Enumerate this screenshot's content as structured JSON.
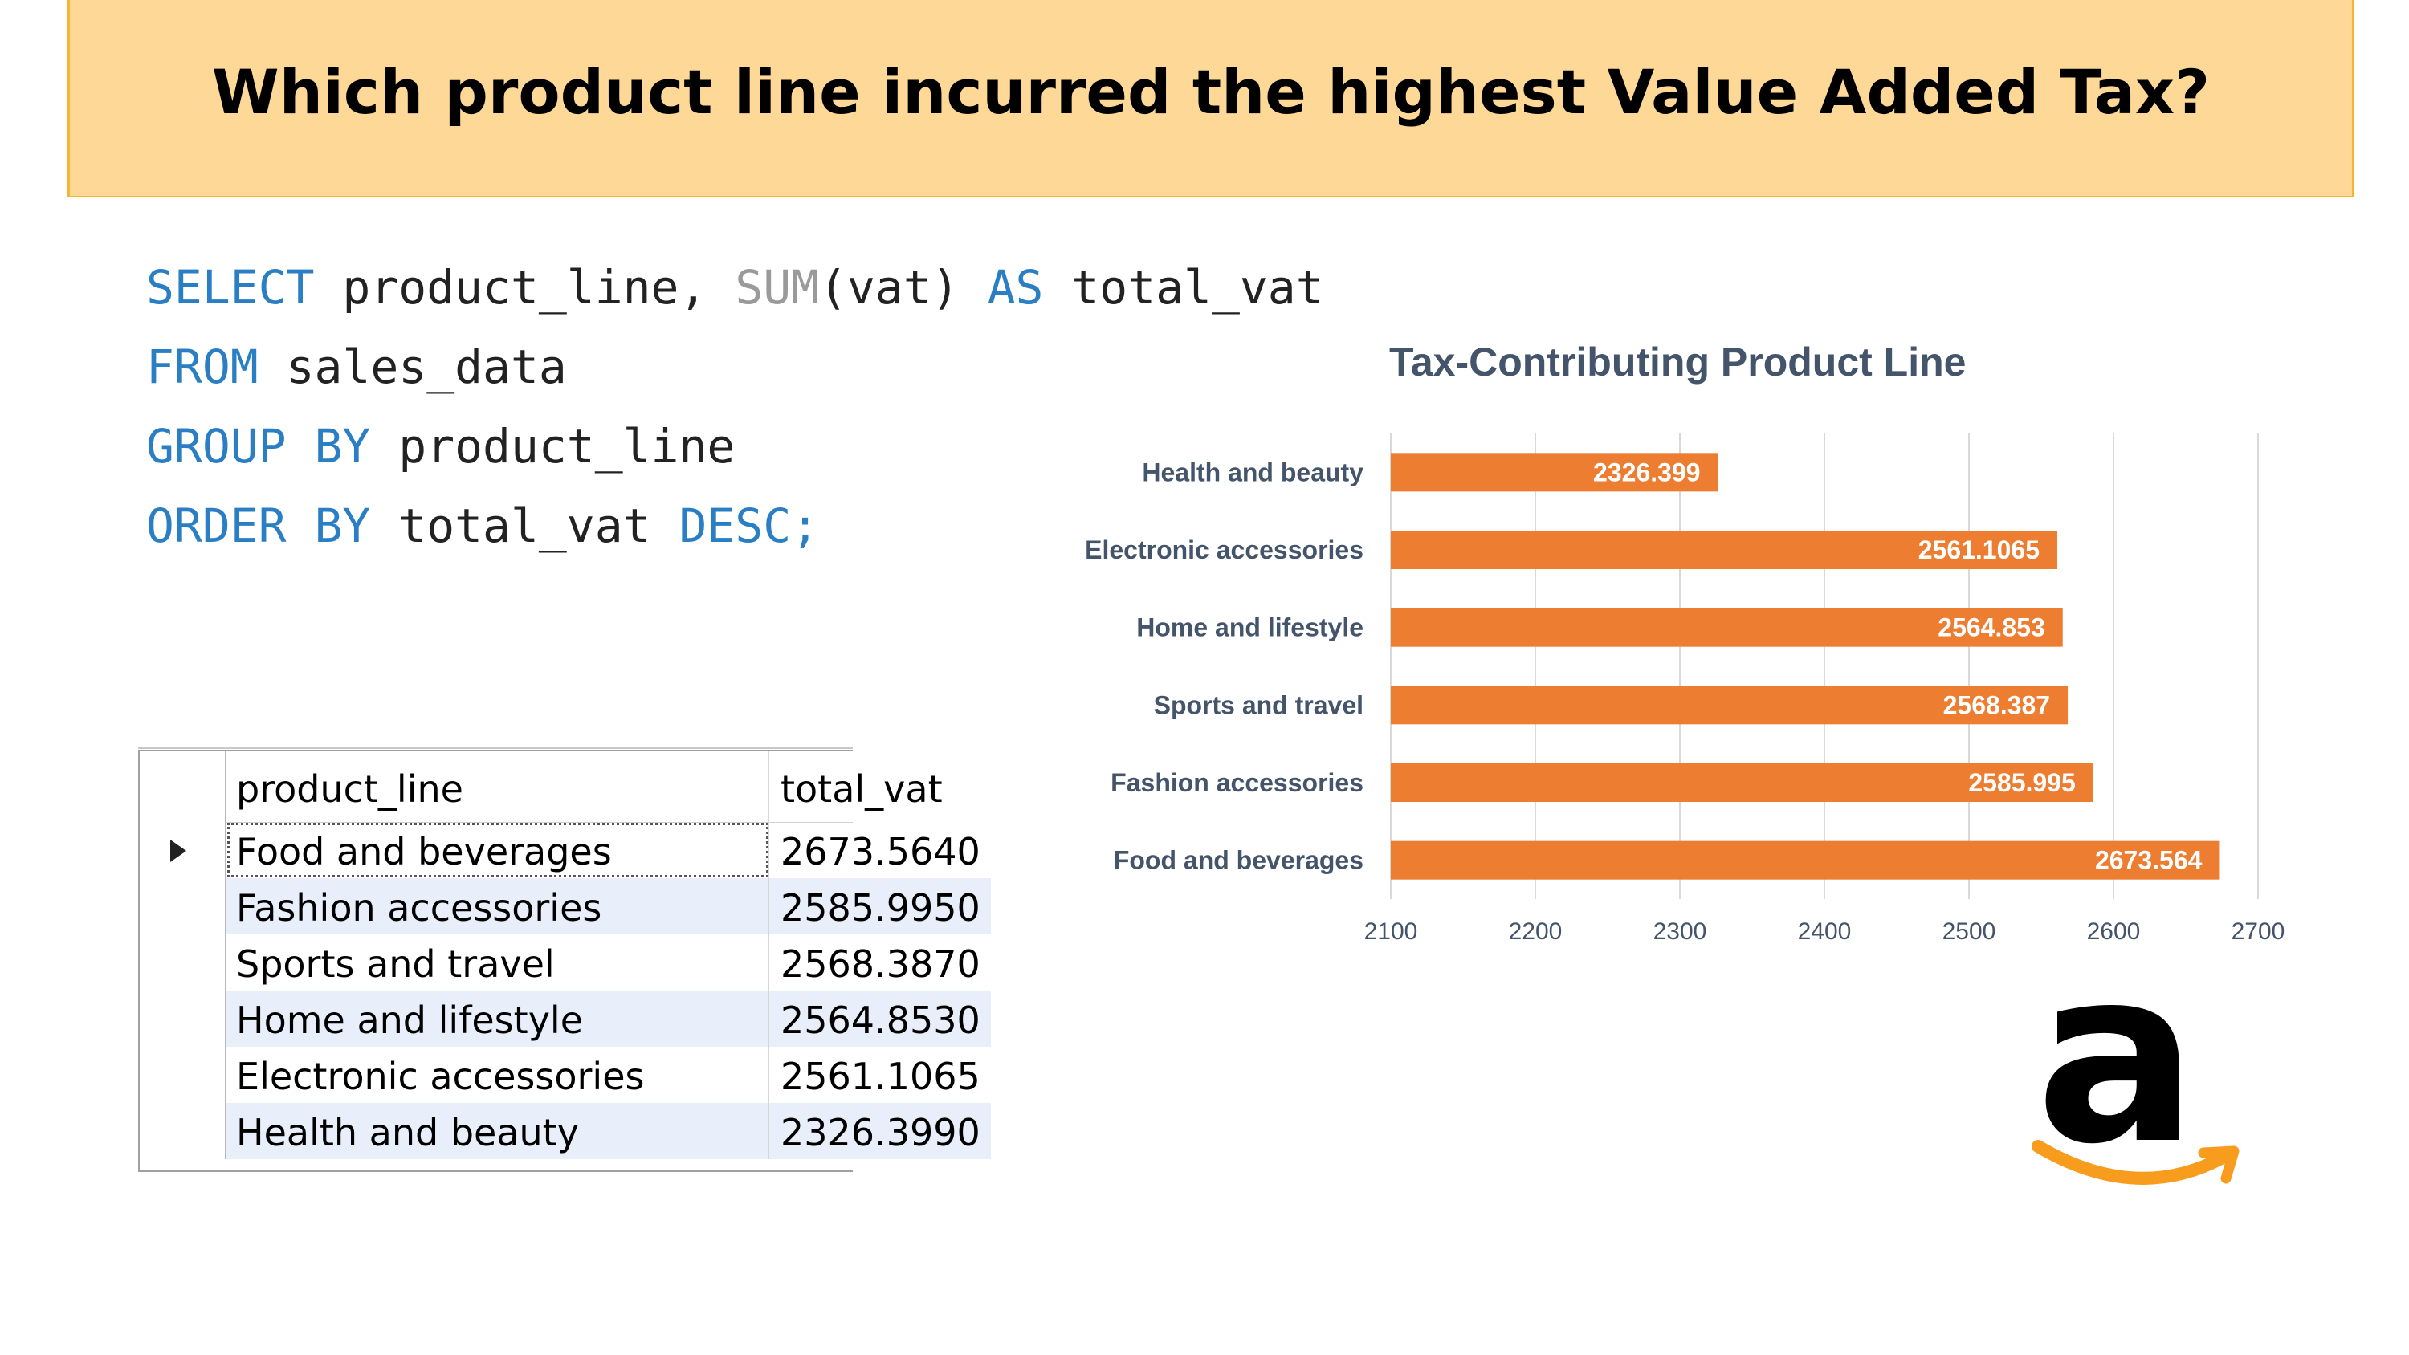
{
  "banner": {
    "title": "Which product line incurred the highest Value Added Tax?"
  },
  "sql": [
    [
      {
        "t": "SELECT",
        "c": "kw"
      },
      {
        "t": " product_line, ",
        "c": ""
      },
      {
        "t": "SUM",
        "c": "fn"
      },
      {
        "t": "(vat) ",
        "c": ""
      },
      {
        "t": "AS",
        "c": "kw"
      },
      {
        "t": " total_vat",
        "c": ""
      }
    ],
    [
      {
        "t": "FROM",
        "c": "kw"
      },
      {
        "t": " sales_data",
        "c": ""
      }
    ],
    [
      {
        "t": "GROUP BY",
        "c": "kw"
      },
      {
        "t": " product_line",
        "c": ""
      }
    ],
    [
      {
        "t": "ORDER BY",
        "c": "kw"
      },
      {
        "t": " total_vat ",
        "c": ""
      },
      {
        "t": "DESC;",
        "c": "kw"
      }
    ]
  ],
  "result_grid": {
    "columns": [
      "product_line",
      "total_vat"
    ],
    "rows": [
      [
        "Food and beverages",
        "2673.5640"
      ],
      [
        "Fashion accessories",
        "2585.9950"
      ],
      [
        "Sports and travel",
        "2568.3870"
      ],
      [
        "Home and lifestyle",
        "2564.8530"
      ],
      [
        "Electronic accessories",
        "2561.1065"
      ],
      [
        "Health and beauty",
        "2326.3990"
      ]
    ]
  },
  "chart_data": {
    "type": "bar",
    "orientation": "horizontal",
    "title": "Tax-Contributing Product Line",
    "categories": [
      "Health and beauty",
      "Electronic accessories",
      "Home and lifestyle",
      "Sports and travel",
      "Fashion accessories",
      "Food and beverages"
    ],
    "values": [
      2326.399,
      2561.1065,
      2564.853,
      2568.387,
      2585.995,
      2673.564
    ],
    "data_labels": [
      "2326.399",
      "2561.1065",
      "2564.853",
      "2568.387",
      "2585.995",
      "2673.564"
    ],
    "xlim": [
      2100,
      2700
    ],
    "xticks": [
      "2100",
      "2200",
      "2300",
      "2400",
      "2500",
      "2600",
      "2700"
    ],
    "grid": true,
    "bar_color": "#ed7d31",
    "label_color": "#44546a"
  },
  "logo": {
    "name": "amazon-logo-icon",
    "letter": "a",
    "smile_color": "#f79c1c"
  }
}
